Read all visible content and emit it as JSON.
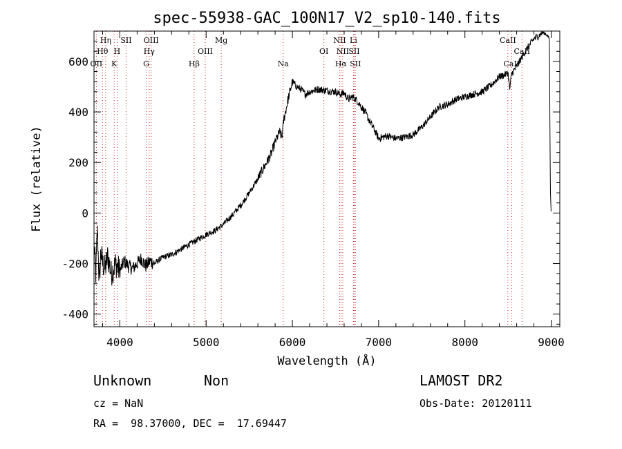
{
  "chart_data": {
    "type": "line",
    "title": "spec-55938-GAC_100N17_V2_sp10-140.fits",
    "xlabel": "Wavelength (Å)",
    "ylabel": "Flux (relative)",
    "xlim": [
      3700,
      9100
    ],
    "ylim": [
      -450,
      720
    ],
    "xticks": [
      4000,
      5000,
      6000,
      7000,
      8000,
      9000
    ],
    "yticks": [
      -400,
      -200,
      0,
      200,
      400,
      600
    ],
    "grid": false,
    "series": [
      {
        "x": [
          3700,
          3720,
          3740,
          3760,
          3780,
          3800,
          3830,
          3860,
          3900,
          3950,
          4000,
          4050,
          4100,
          4150,
          4200,
          4250,
          4300,
          4350,
          4400,
          4500,
          4600,
          4700,
          4800,
          4900,
          5000,
          5100,
          5200,
          5300,
          5400,
          5500,
          5600,
          5700,
          5750,
          5800,
          5850,
          5880,
          5900,
          5920,
          5950,
          6000,
          6050,
          6100,
          6150,
          6200,
          6300,
          6400,
          6500,
          6550,
          6600,
          6650,
          6700,
          6750,
          6800,
          6850,
          6900,
          6950,
          7000,
          7050,
          7100,
          7150,
          7200,
          7300,
          7400,
          7500,
          7600,
          7700,
          7800,
          7900,
          8000,
          8100,
          8200,
          8300,
          8400,
          8450,
          8500,
          8520,
          8540,
          8560,
          8600,
          8650,
          8700,
          8750,
          8800,
          8850,
          8900,
          8950,
          8980,
          8990,
          9000
        ],
        "y": [
          -120,
          -250,
          -60,
          -280,
          -150,
          -200,
          -220,
          -170,
          -240,
          -200,
          -230,
          -190,
          -210,
          -220,
          -200,
          -180,
          -210,
          -190,
          -200,
          -175,
          -165,
          -145,
          -125,
          -105,
          -85,
          -70,
          -45,
          -10,
          30,
          80,
          135,
          200,
          230,
          280,
          320,
          300,
          370,
          400,
          450,
          520,
          500,
          490,
          470,
          480,
          490,
          485,
          480,
          470,
          475,
          450,
          460,
          445,
          420,
          395,
          360,
          330,
          295,
          300,
          305,
          300,
          295,
          300,
          310,
          340,
          380,
          420,
          430,
          450,
          460,
          470,
          480,
          505,
          540,
          545,
          555,
          490,
          550,
          560,
          580,
          610,
          640,
          665,
          690,
          700,
          715,
          705,
          690,
          100,
          0
        ]
      }
    ],
    "lines": [
      {
        "label": "Hη",
        "x": 3835,
        "row": 0
      },
      {
        "label": "Hθ",
        "x": 3798,
        "row": 1
      },
      {
        "label": "OII",
        "x": 3727,
        "row": 2
      },
      {
        "label": "SII",
        "x": 4072,
        "row": 0
      },
      {
        "label": "H",
        "x": 3968,
        "row": 1
      },
      {
        "label": "K",
        "x": 3934,
        "row": 2
      },
      {
        "label": "OIII",
        "x": 4363,
        "row": 0
      },
      {
        "label": "Hγ",
        "x": 4340,
        "row": 1
      },
      {
        "label": "G",
        "x": 4305,
        "row": 2
      },
      {
        "label": "Hβ",
        "x": 4861,
        "row": 2
      },
      {
        "label": "OIII",
        "x": 4990,
        "row": 1
      },
      {
        "label": "Mg",
        "x": 5175,
        "row": 0
      },
      {
        "label": "Na",
        "x": 5893,
        "row": 2
      },
      {
        "label": "OI",
        "x": 6365,
        "row": 1
      },
      {
        "label": "NII",
        "x": 6548,
        "row": 0
      },
      {
        "label": "NII",
        "x": 6584,
        "row": 1
      },
      {
        "label": "Hα",
        "x": 6563,
        "row": 2
      },
      {
        "label": "Li",
        "x": 6708,
        "row": 0
      },
      {
        "label": "SII",
        "x": 6716,
        "row": 1
      },
      {
        "label": "SII",
        "x": 6731,
        "row": 2
      },
      {
        "label": "CaII",
        "x": 8498,
        "row": 0
      },
      {
        "label": "CaII",
        "x": 8542,
        "row": 2
      },
      {
        "label": "CaII",
        "x": 8662,
        "row": 1
      }
    ]
  },
  "footer": {
    "class_label": "Unknown",
    "subclass_label": "Non",
    "survey": "LAMOST DR2",
    "cz": "cz = NaN",
    "obs_date": "Obs-Date: 20120111",
    "coords": "RA =  98.37000, DEC =  17.69447"
  }
}
